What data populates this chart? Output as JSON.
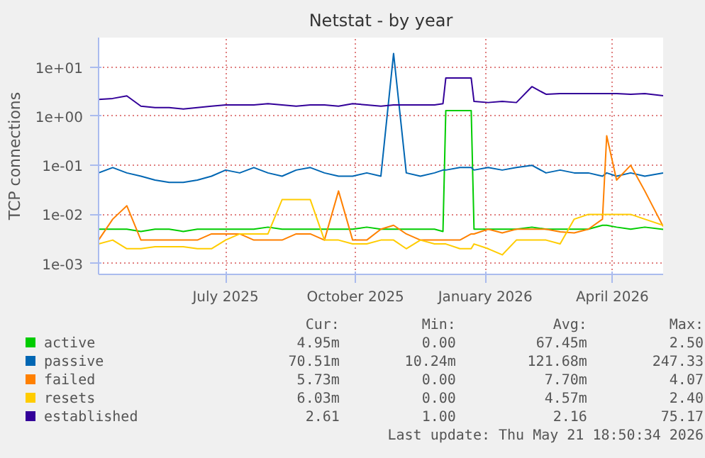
{
  "chart_data": {
    "type": "line",
    "title": "Netstat - by year",
    "ylabel": "TCP connections",
    "log": "y",
    "grid": true,
    "legend": "bottom",
    "xlim": [
      "2025-04-16",
      "2026-05-21"
    ],
    "xticks": [
      {
        "value": "2025-07-15",
        "label": "July 2025"
      },
      {
        "value": "2025-10-15",
        "label": "October 2025"
      },
      {
        "value": "2026-01-15",
        "label": "January 2026"
      },
      {
        "value": "2026-04-15",
        "label": "April 2026"
      }
    ],
    "ylim": [
      0.0006,
      40
    ],
    "yticks": [
      {
        "value": 0.001,
        "label": "1e-03"
      },
      {
        "value": 0.01,
        "label": "1e-02"
      },
      {
        "value": 0.1,
        "label": "1e-01"
      },
      {
        "value": 1,
        "label": "1e+00"
      },
      {
        "value": 10,
        "label": "1e+01"
      }
    ],
    "x": [
      "2025-04-16",
      "2025-04-26",
      "2025-05-06",
      "2025-05-16",
      "2025-05-26",
      "2025-06-05",
      "2025-06-15",
      "2025-06-25",
      "2025-07-05",
      "2025-07-15",
      "2025-07-25",
      "2025-08-04",
      "2025-08-14",
      "2025-08-24",
      "2025-09-03",
      "2025-09-13",
      "2025-09-23",
      "2025-10-03",
      "2025-10-13",
      "2025-10-23",
      "2025-11-02",
      "2025-11-11",
      "2025-11-20",
      "2025-11-30",
      "2025-12-10",
      "2025-12-16",
      "2025-12-18",
      "2025-12-28",
      "2026-01-05",
      "2026-01-07",
      "2026-01-17",
      "2026-01-27",
      "2026-02-06",
      "2026-02-17",
      "2026-02-27",
      "2026-03-09",
      "2026-03-19",
      "2026-03-29",
      "2026-04-08",
      "2026-04-11",
      "2026-04-18",
      "2026-04-28",
      "2026-05-08",
      "2026-05-21"
    ],
    "series": [
      {
        "name": "active",
        "color": "#00cc00",
        "values": [
          0.005,
          0.005,
          0.005,
          0.0045,
          0.005,
          0.005,
          0.0045,
          0.005,
          0.005,
          0.005,
          0.005,
          0.005,
          0.0055,
          0.005,
          0.005,
          0.005,
          0.005,
          0.005,
          0.005,
          0.0055,
          0.005,
          0.005,
          0.005,
          0.005,
          0.005,
          0.0045,
          1.3,
          1.3,
          1.3,
          0.005,
          0.005,
          0.005,
          0.005,
          0.0055,
          0.005,
          0.005,
          0.005,
          0.005,
          0.006,
          0.006,
          0.0055,
          0.005,
          0.0055,
          0.00495
        ]
      },
      {
        "name": "passive",
        "color": "#0066b3",
        "values": [
          0.07,
          0.09,
          0.07,
          0.06,
          0.05,
          0.045,
          0.045,
          0.05,
          0.06,
          0.08,
          0.07,
          0.09,
          0.07,
          0.06,
          0.08,
          0.09,
          0.07,
          0.06,
          0.06,
          0.07,
          0.06,
          19,
          0.07,
          0.06,
          0.07,
          0.08,
          0.08,
          0.09,
          0.09,
          0.08,
          0.09,
          0.08,
          0.09,
          0.1,
          0.07,
          0.08,
          0.07,
          0.07,
          0.06,
          0.07,
          0.06,
          0.07,
          0.06,
          0.07
        ]
      },
      {
        "name": "failed",
        "color": "#ff8000",
        "values": [
          0.003,
          0.008,
          0.015,
          0.003,
          0.003,
          0.003,
          0.003,
          0.003,
          0.004,
          0.004,
          0.004,
          0.003,
          0.003,
          0.003,
          0.004,
          0.004,
          0.003,
          0.03,
          0.003,
          0.003,
          0.005,
          0.006,
          0.004,
          0.003,
          0.003,
          0.003,
          0.003,
          0.003,
          0.004,
          0.004,
          0.005,
          0.0042,
          0.005,
          0.005,
          0.005,
          0.0044,
          0.0042,
          0.005,
          0.008,
          0.4,
          0.05,
          0.1,
          0.03,
          0.0057
        ]
      },
      {
        "name": "resets",
        "color": "#ffcc00",
        "values": [
          0.0025,
          0.003,
          0.002,
          0.002,
          0.0022,
          0.0022,
          0.0022,
          0.002,
          0.002,
          0.003,
          0.004,
          0.004,
          0.004,
          0.02,
          0.02,
          0.02,
          0.003,
          0.003,
          0.0025,
          0.0025,
          0.003,
          0.003,
          0.002,
          0.003,
          0.0025,
          0.0025,
          0.0025,
          0.002,
          0.002,
          0.0025,
          0.002,
          0.0015,
          0.003,
          0.003,
          0.003,
          0.0025,
          0.008,
          0.01,
          0.01,
          0.01,
          0.01,
          0.01,
          0.008,
          0.006
        ]
      },
      {
        "name": "established",
        "color": "#330099",
        "values": [
          2.2,
          2.3,
          2.6,
          1.6,
          1.5,
          1.5,
          1.4,
          1.5,
          1.6,
          1.7,
          1.7,
          1.7,
          1.8,
          1.7,
          1.6,
          1.7,
          1.7,
          1.6,
          1.8,
          1.7,
          1.6,
          1.7,
          1.7,
          1.7,
          1.7,
          1.8,
          6.0,
          6.0,
          6.0,
          2.0,
          1.9,
          2.0,
          1.9,
          4.0,
          2.8,
          2.9,
          2.9,
          2.9,
          2.9,
          2.9,
          2.9,
          2.8,
          2.9,
          2.61
        ]
      }
    ],
    "annotations": [
      "Cur:",
      "Min:",
      "Avg:",
      "Max:",
      "4.95m",
      "0.00",
      "67.45m",
      "2.50",
      "70.51m",
      "10.24m",
      "121.68m",
      "247.33",
      "5.73m",
      "0.00",
      "7.70m",
      "4.07",
      "6.03m",
      "0.00",
      "4.57m",
      "2.40",
      "2.61",
      "1.00",
      "2.16",
      "75.17",
      "Last update: Thu May 21 18:50:34 2026"
    ]
  }
}
